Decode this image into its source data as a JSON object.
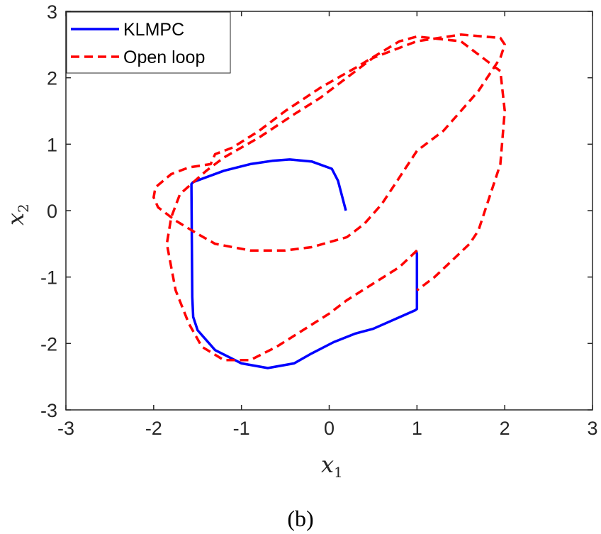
{
  "chart_data": {
    "type": "line",
    "title": "",
    "xlabel": "x",
    "xlabel_sub": "1",
    "ylabel": "x",
    "ylabel_sub": "2",
    "xlim": [
      -3,
      3
    ],
    "ylim": [
      -3,
      3
    ],
    "xticks": [
      "-3",
      "-2",
      "-1",
      "0",
      "1",
      "2",
      "3"
    ],
    "yticks": [
      "3",
      "2",
      "1",
      "0",
      "-1",
      "-2",
      "-3"
    ],
    "grid": false,
    "legend_position": "top-left",
    "series": [
      {
        "name": "KLMPC",
        "color": "#0000ff",
        "style": "solid",
        "x": [
          0.19,
          0.15,
          0.1,
          0.03,
          -0.2,
          -0.45,
          -0.65,
          -0.9,
          -1.2,
          -1.55,
          -1.57,
          -1.565,
          -1.56,
          -1.55,
          -1.5,
          -1.3,
          -1.0,
          -0.7,
          -0.4,
          -0.2,
          0.05,
          0.3,
          0.5,
          0.98,
          1.0,
          1.0,
          0.99
        ],
        "y": [
          0.0,
          0.2,
          0.45,
          0.63,
          0.74,
          0.77,
          0.75,
          0.7,
          0.6,
          0.43,
          0.4,
          -0.5,
          -1.3,
          -1.6,
          -1.8,
          -2.1,
          -2.3,
          -2.37,
          -2.3,
          -2.15,
          -1.98,
          -1.85,
          -1.78,
          -1.5,
          -1.48,
          -0.65,
          -0.6
        ]
      },
      {
        "name": "Open loop",
        "color": "#ff0000",
        "style": "dashed",
        "x": [
          1.0,
          0.8,
          0.5,
          0.2,
          0.0,
          -0.3,
          -0.6,
          -0.9,
          -1.2,
          -1.45,
          -1.6,
          -1.75,
          -1.85,
          -1.8,
          -1.7,
          -1.4,
          -1.2,
          -0.8,
          -0.4,
          -0.1,
          0.1,
          0.3,
          0.5,
          0.8,
          1.0,
          1.5,
          1.95,
          2.0,
          1.95,
          1.85,
          1.7,
          1.5,
          1.3,
          1.0,
          0.8,
          0.6,
          0.4,
          0.2,
          -0.2,
          -0.5,
          -0.9,
          -1.3,
          -1.5,
          -1.75,
          -1.95,
          -2.0,
          -1.98,
          -1.8,
          -1.6,
          -1.35,
          -1.3,
          -1.1,
          -0.8,
          -0.5,
          -0.1,
          0.3,
          0.55,
          0.8,
          1.0,
          1.5,
          1.95,
          2.0,
          1.95,
          1.7,
          1.6,
          1.4,
          1.2,
          1.0
        ],
        "y": [
          -0.6,
          -0.85,
          -1.1,
          -1.35,
          -1.55,
          -1.8,
          -2.05,
          -2.25,
          -2.25,
          -2.05,
          -1.7,
          -1.2,
          -0.5,
          -0.1,
          0.25,
          0.6,
          0.8,
          1.1,
          1.45,
          1.7,
          1.9,
          2.1,
          2.3,
          2.45,
          2.55,
          2.65,
          2.6,
          2.5,
          2.3,
          2.1,
          1.8,
          1.5,
          1.2,
          0.9,
          0.5,
          0.1,
          -0.2,
          -0.4,
          -0.55,
          -0.6,
          -0.6,
          -0.5,
          -0.35,
          -0.15,
          0.05,
          0.2,
          0.35,
          0.55,
          0.65,
          0.7,
          0.85,
          0.95,
          1.2,
          1.5,
          1.85,
          2.15,
          2.35,
          2.55,
          2.62,
          2.55,
          2.1,
          1.5,
          0.7,
          -0.3,
          -0.5,
          -0.75,
          -1.0,
          -1.2
        ]
      }
    ]
  },
  "caption": "(b)"
}
